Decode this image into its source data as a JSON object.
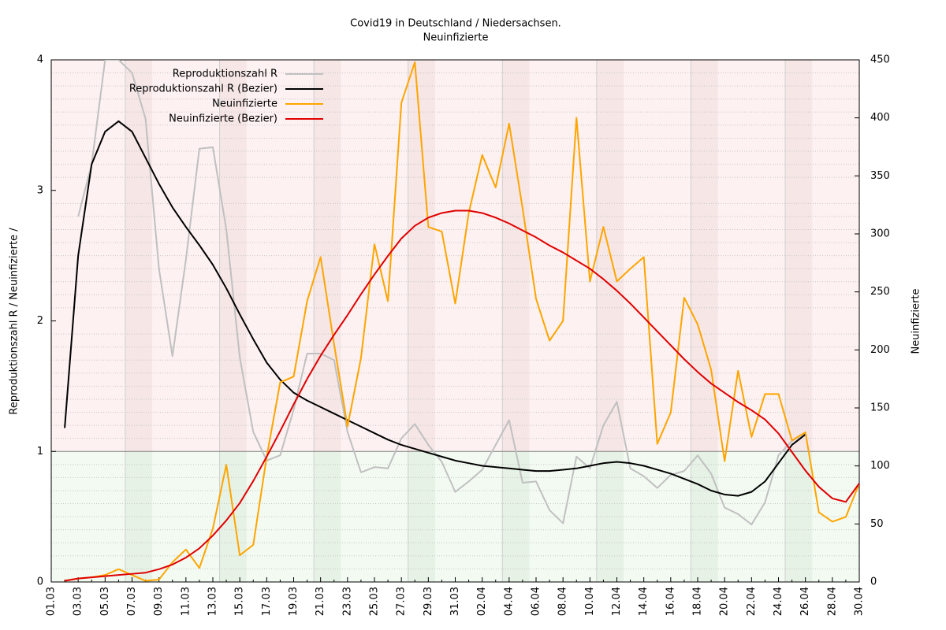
{
  "chart_data": {
    "type": "line",
    "title": "Covid19 in Deutschland / Niedersachsen.",
    "subtitle": "Neuinfizierte",
    "ylabel": "Reproduktionszahl R / Neuinfizierte /",
    "y2label": "Neuinfizierte",
    "categories": [
      "01.03",
      null,
      "03.03",
      null,
      "05.03",
      null,
      "07.03",
      null,
      "09.03",
      null,
      "11.03",
      null,
      "13.03",
      null,
      "15.03",
      null,
      "17.03",
      null,
      "19.03",
      null,
      "21.03",
      null,
      "23.03",
      null,
      "25.03",
      null,
      "27.03",
      null,
      "29.03",
      null,
      "31.03",
      null,
      "02.04",
      null,
      "04.04",
      null,
      "06.04",
      null,
      "08.04",
      null,
      "10.04",
      null,
      "12.04",
      null,
      "14.04",
      null,
      "16.04",
      null,
      "18.04",
      null,
      "20.04",
      null,
      "22.04",
      null,
      "24.04",
      null,
      "26.04",
      null,
      "28.04",
      null,
      "30.04"
    ],
    "ylim": [
      0,
      4
    ],
    "yticks": [
      0,
      1,
      2,
      3,
      4
    ],
    "y2lim": [
      0,
      450
    ],
    "y2ticks": [
      0,
      50,
      100,
      150,
      200,
      250,
      300,
      350,
      400,
      450
    ],
    "threshold": 1,
    "minor_grid": true,
    "legend": "top-left",
    "series": [
      {
        "name": "Reproduktionszahl R",
        "color": "#c0c0c0",
        "axis": "y",
        "values": [
          null,
          null,
          2.8,
          3.2,
          4.0,
          4.0,
          3.9,
          3.55,
          2.4,
          1.73,
          2.47,
          3.32,
          3.33,
          2.7,
          1.72,
          1.15,
          0.93,
          0.97,
          1.32,
          1.75,
          1.75,
          1.7,
          1.15,
          0.84,
          0.88,
          0.87,
          1.1,
          1.21,
          1.05,
          0.92,
          0.69,
          0.77,
          0.86,
          1.05,
          1.24,
          0.76,
          0.77,
          0.55,
          0.45,
          0.96,
          0.87,
          1.2,
          1.38,
          0.87,
          0.81,
          0.72,
          0.82,
          0.85,
          0.97,
          0.83,
          0.57,
          0.52,
          0.44,
          0.61,
          0.97,
          1.08,
          1.14,
          null,
          null,
          null,
          null
        ]
      },
      {
        "name": "Reproduktionszahl R (Bezier)",
        "color": "#000000",
        "axis": "y",
        "values": [
          null,
          1.18,
          2.5,
          3.2,
          3.45,
          3.53,
          3.45,
          3.25,
          3.05,
          2.87,
          2.72,
          2.58,
          2.43,
          2.25,
          2.05,
          1.86,
          1.68,
          1.55,
          1.45,
          1.39,
          1.34,
          1.29,
          1.24,
          1.19,
          1.14,
          1.09,
          1.05,
          1.02,
          0.99,
          0.96,
          0.93,
          0.91,
          0.89,
          0.88,
          0.87,
          0.86,
          0.85,
          0.85,
          0.86,
          0.87,
          0.89,
          0.91,
          0.92,
          0.91,
          0.89,
          0.86,
          0.83,
          0.79,
          0.75,
          0.7,
          0.67,
          0.66,
          0.69,
          0.77,
          0.91,
          1.05,
          1.13,
          null,
          null,
          null,
          null
        ]
      },
      {
        "name": "Neuinfizierte",
        "color": "#ffa500",
        "axis": "y2",
        "values": [
          null,
          1,
          3,
          4,
          6,
          11,
          6,
          1,
          2,
          17,
          28,
          12,
          46,
          101,
          23,
          32,
          108,
          172,
          177,
          242,
          280,
          205,
          134,
          193,
          291,
          242,
          413,
          448,
          306,
          302,
          240,
          318,
          368,
          340,
          395,
          322,
          244,
          208,
          225,
          400,
          259,
          306,
          259,
          270,
          280,
          119,
          146,
          245,
          222,
          183,
          104,
          182,
          125,
          162,
          162,
          122,
          129,
          60,
          52,
          56,
          85
        ]
      },
      {
        "name": "Neuinfizierte (Bezier)",
        "color": "#e00000",
        "axis": "y2",
        "values": [
          null,
          1,
          3,
          4,
          5,
          6,
          7,
          8,
          11,
          15,
          21,
          29,
          40,
          53,
          68,
          87,
          108,
          130,
          153,
          175,
          195,
          213,
          230,
          248,
          265,
          281,
          296,
          307,
          314,
          318,
          320,
          320,
          318,
          314,
          309,
          303,
          297,
          290,
          284,
          277,
          270,
          261,
          251,
          240,
          228,
          216,
          204,
          192,
          181,
          171,
          163,
          155,
          148,
          140,
          128,
          112,
          96,
          82,
          72,
          69,
          85
        ]
      }
    ]
  }
}
